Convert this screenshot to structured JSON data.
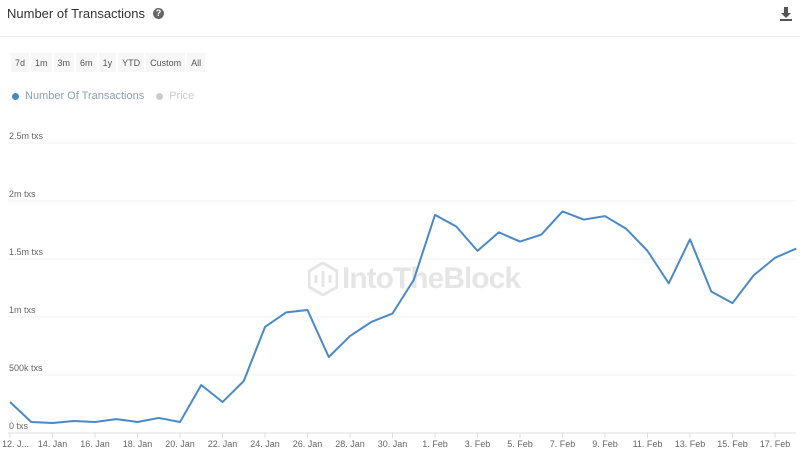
{
  "header": {
    "title": "Number of Transactions",
    "help_icon": "question-circle-icon",
    "download_icon": "download-icon"
  },
  "ranges": [
    "7d",
    "1m",
    "3m",
    "6m",
    "1y",
    "YTD",
    "Custom",
    "All"
  ],
  "legend": [
    {
      "label": "Number Of Transactions",
      "color": "#4a89c8",
      "active": true
    },
    {
      "label": "Price",
      "color": "#cccccc",
      "active": false
    }
  ],
  "watermark": "IntoTheBlock",
  "chart_data": {
    "type": "line",
    "title": "Number of Transactions",
    "ylim": [
      0,
      2500000
    ],
    "y_ticks": [
      {
        "v": 0,
        "label": "0 txs"
      },
      {
        "v": 500000,
        "label": "500k txs"
      },
      {
        "v": 1000000,
        "label": "1m txs"
      },
      {
        "v": 1500000,
        "label": "1.5m txs"
      },
      {
        "v": 2000000,
        "label": "2m txs"
      },
      {
        "v": 2500000,
        "label": "2.5m txs"
      }
    ],
    "x_ticks": [
      "12. J...",
      "14. Jan",
      "16. Jan",
      "18. Jan",
      "20. Jan",
      "22. Jan",
      "24. Jan",
      "26. Jan",
      "28. Jan",
      "30. Jan",
      "1. Feb",
      "3. Feb",
      "5. Feb",
      "7. Feb",
      "9. Feb",
      "11. Feb",
      "13. Feb",
      "15. Feb",
      "17. Feb"
    ],
    "grid": true,
    "series": [
      {
        "name": "Number Of Transactions",
        "color": "#4a89c8",
        "x": [
          "12 Jan",
          "13 Jan",
          "14 Jan",
          "15 Jan",
          "16 Jan",
          "17 Jan",
          "18 Jan",
          "19 Jan",
          "20 Jan",
          "21 Jan",
          "22 Jan",
          "23 Jan",
          "24 Jan",
          "25 Jan",
          "26 Jan",
          "27 Jan",
          "28 Jan",
          "29 Jan",
          "30 Jan",
          "31 Jan",
          "1 Feb",
          "2 Feb",
          "3 Feb",
          "4 Feb",
          "5 Feb",
          "6 Feb",
          "7 Feb",
          "8 Feb",
          "9 Feb",
          "10 Feb",
          "11 Feb",
          "12 Feb",
          "13 Feb",
          "14 Feb",
          "15 Feb",
          "16 Feb",
          "17 Feb",
          "18 Feb"
        ],
        "values": [
          267000,
          95000,
          86000,
          103000,
          95000,
          120000,
          95000,
          130000,
          95000,
          414000,
          267000,
          448000,
          914000,
          1040000,
          1060000,
          655000,
          836000,
          957000,
          1030000,
          1320000,
          1880000,
          1780000,
          1570000,
          1730000,
          1650000,
          1710000,
          1910000,
          1840000,
          1870000,
          1760000,
          1570000,
          1290000,
          1670000,
          1220000,
          1120000,
          1360000,
          1510000,
          1590000
        ]
      }
    ]
  }
}
